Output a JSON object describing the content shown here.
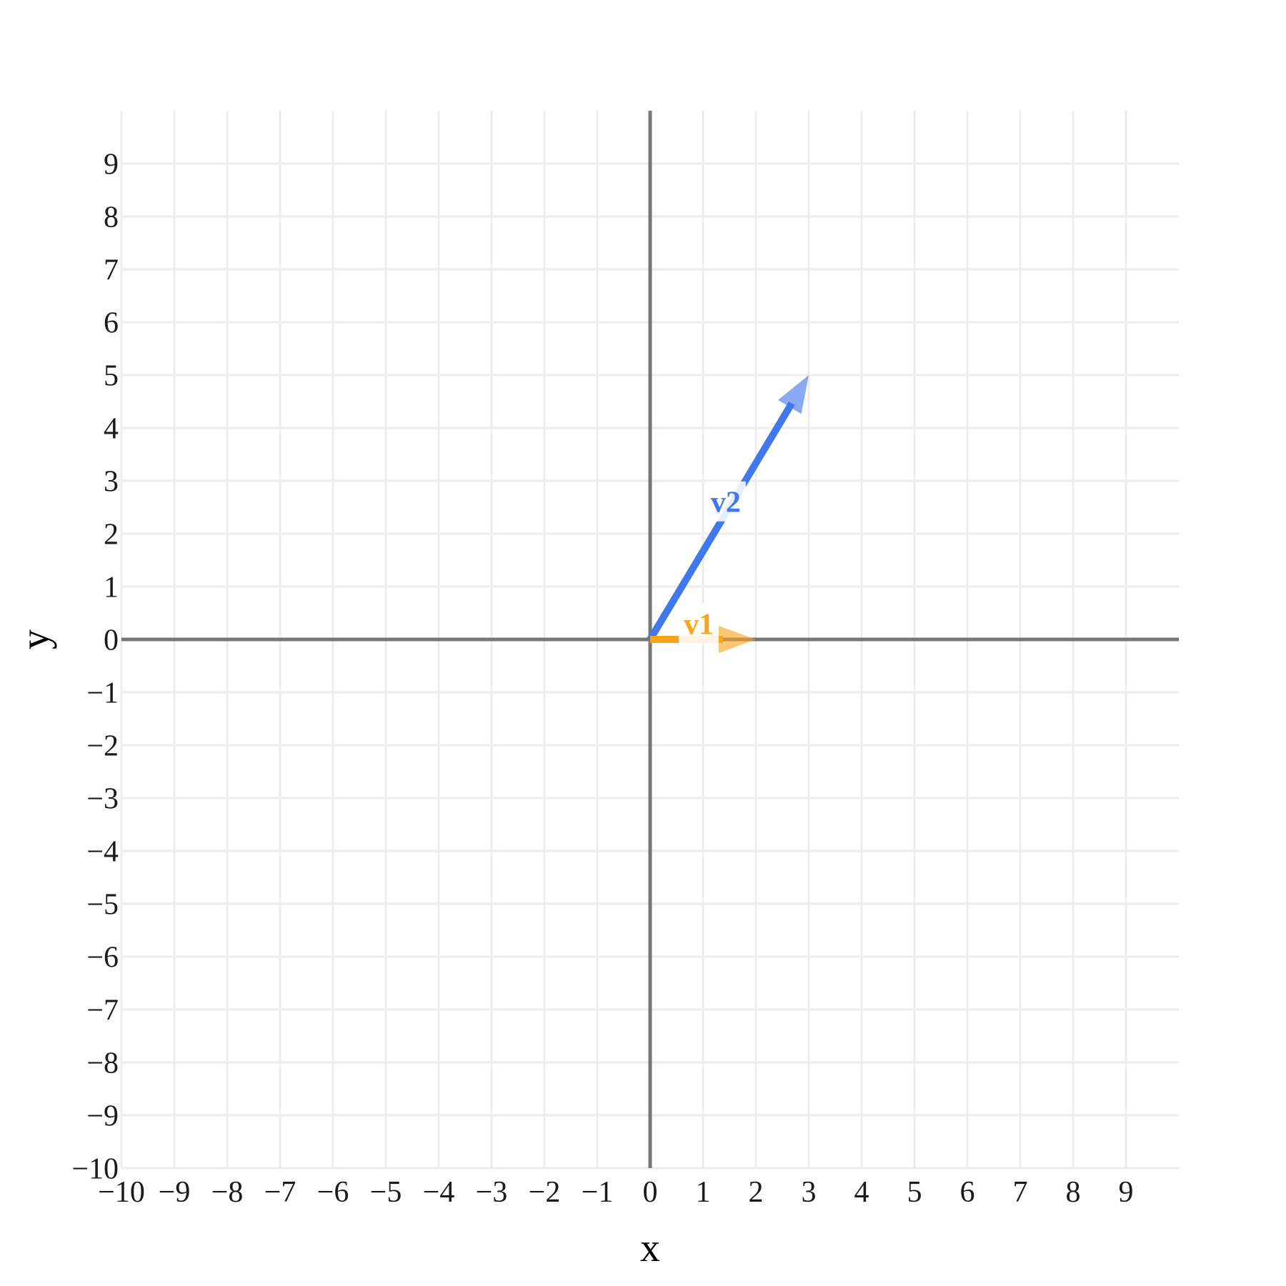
{
  "page": {
    "background": "#ffffff"
  },
  "chart_data": {
    "type": "line",
    "subtype": "2d-vector-plot",
    "title": "",
    "xlabel": "x",
    "ylabel": "y",
    "xlim": [
      -10,
      10
    ],
    "ylim": [
      -10,
      10
    ],
    "x_ticks": [
      -10,
      -9,
      -8,
      -7,
      -6,
      -5,
      -4,
      -3,
      -2,
      -1,
      0,
      1,
      2,
      3,
      4,
      5,
      6,
      7,
      8,
      9
    ],
    "y_ticks": [
      -10,
      -9,
      -8,
      -7,
      -6,
      -5,
      -4,
      -3,
      -2,
      -1,
      0,
      1,
      2,
      3,
      4,
      5,
      6,
      7,
      8,
      9
    ],
    "grid": true,
    "legend_position": "none",
    "colors": {
      "axis": "#777777",
      "grid": "#ededed",
      "tick_label": "#1b1b1b",
      "background": "#ffffff",
      "v1": "#F9A41B",
      "v2": "#4278ED"
    },
    "vectors": [
      {
        "name": "v1",
        "from": [
          0,
          0
        ],
        "to": [
          2,
          0
        ],
        "color": "#F9A41B",
        "label_pos": [
          0.92,
          0.3
        ]
      },
      {
        "name": "v2",
        "from": [
          0,
          0
        ],
        "to": [
          3,
          5
        ],
        "color": "#4278ED",
        "label_pos": [
          1.43,
          2.61
        ]
      }
    ]
  }
}
